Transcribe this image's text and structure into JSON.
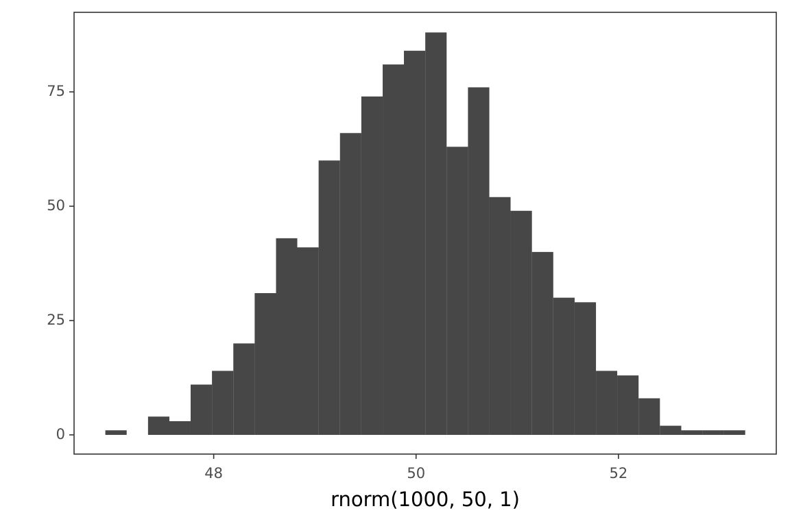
{
  "chart_data": {
    "type": "histogram",
    "x_label": "rnorm(1000, 50, 1)",
    "bins": [
      46.929,
      47.14,
      47.351,
      47.562,
      47.772,
      47.983,
      48.194,
      48.405,
      48.616,
      48.826,
      49.037,
      49.248,
      49.459,
      49.67,
      49.88,
      50.091,
      50.302,
      50.513,
      50.724,
      50.934,
      51.145,
      51.356,
      51.567,
      51.778,
      51.988,
      52.199,
      52.41,
      52.621,
      52.832,
      53.042,
      53.253
    ],
    "values": [
      1,
      0,
      4,
      3,
      11,
      14,
      20,
      31,
      43,
      41,
      60,
      66,
      74,
      81,
      84,
      88,
      63,
      76,
      52,
      49,
      40,
      30,
      29,
      14,
      13,
      8,
      2,
      1,
      1,
      1
    ],
    "color": "#474747",
    "xlim": [
      46.62,
      53.56
    ],
    "xticks": [
      48,
      50,
      52
    ],
    "ylim": [
      -4.2,
      92.4
    ],
    "yticks": [
      0,
      25,
      50,
      75
    ],
    "grid": false
  }
}
